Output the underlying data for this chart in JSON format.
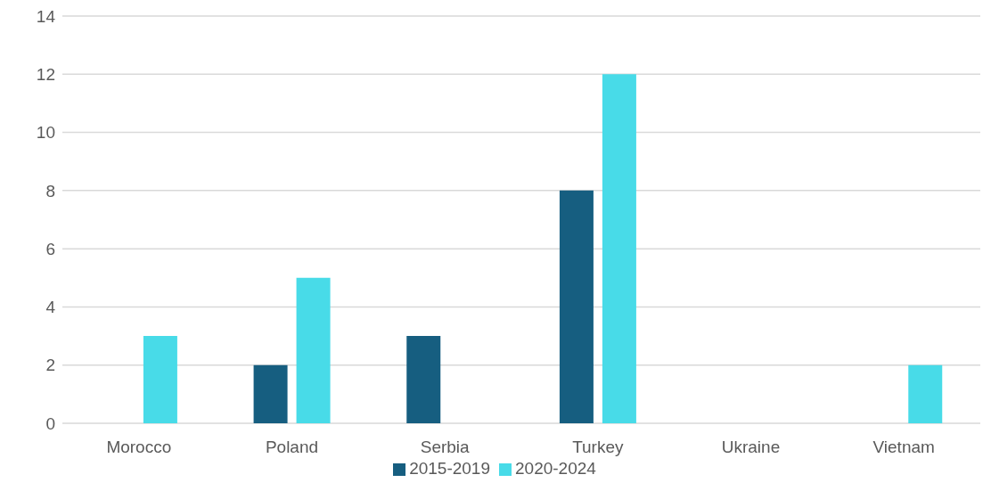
{
  "chart_data": {
    "type": "bar",
    "categories": [
      "Morocco",
      "Poland",
      "Serbia",
      "Turkey",
      "Ukraine",
      "Vietnam"
    ],
    "series": [
      {
        "name": "2015-2019",
        "color": "#165e80",
        "values": [
          0,
          2,
          3,
          8,
          0,
          0
        ]
      },
      {
        "name": "2020-2024",
        "color": "#48dbe8",
        "values": [
          3,
          5,
          0,
          12,
          0,
          2
        ]
      }
    ],
    "ylim": [
      0,
      14
    ],
    "yticks": [
      0,
      2,
      4,
      6,
      8,
      10,
      12,
      14
    ],
    "grid": "y",
    "legend": "bottom"
  }
}
